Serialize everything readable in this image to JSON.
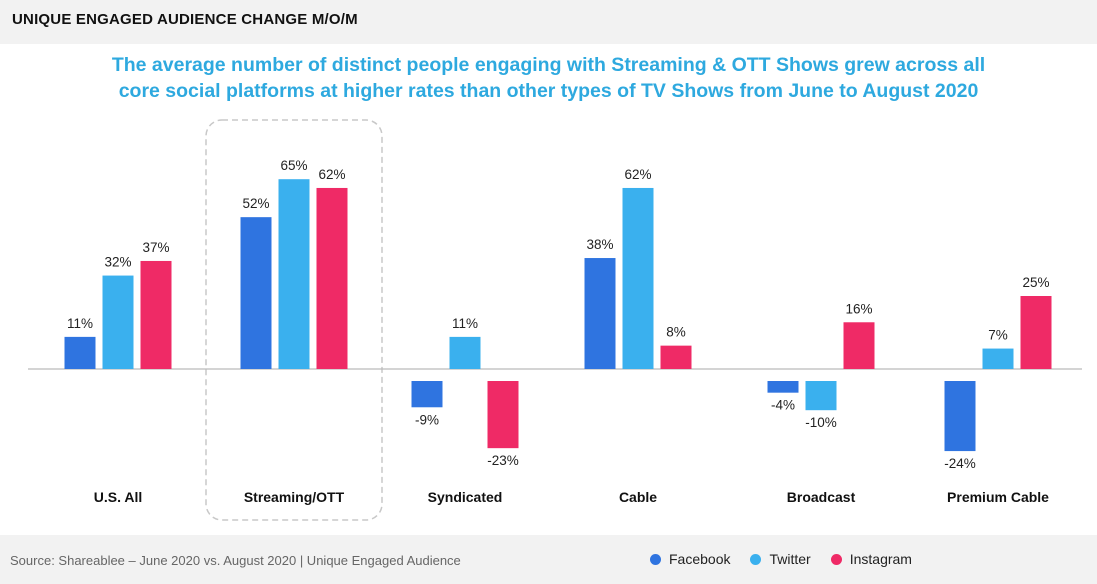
{
  "header": {
    "title": "UNIQUE ENGAGED AUDIENCE CHANGE M/O/M"
  },
  "subtitle": {
    "line1": "The average number of distinct people engaging with Streaming & OTT Shows grew across all",
    "line2": "core social platforms at higher rates than other types of TV Shows from June to August 2020"
  },
  "footer": {
    "source": "Source: Shareablee – June 2020 vs. August 2020 | Unique Engaged Audience"
  },
  "colors": {
    "facebook": "#2f74e0",
    "twitter": "#3ab0ee",
    "instagram": "#ef2a66",
    "highlight_border": "#c8c8c8",
    "baseline": "#bbbbbb"
  },
  "chart_data": {
    "type": "bar",
    "title": "The average number of distinct people engaging with Streaming & OTT Shows grew across all core social platforms at higher rates than other types of TV Shows from June to August 2020",
    "categories": [
      "U.S. All",
      "Streaming/OTT",
      "Syndicated",
      "Cable",
      "Broadcast",
      "Premium Cable"
    ],
    "series": [
      {
        "name": "Facebook",
        "color": "#2f74e0",
        "values": [
          11,
          52,
          -9,
          38,
          -4,
          -24
        ],
        "labels": [
          "11%",
          "52%",
          "-9%",
          "38%",
          "-4%",
          "-24%"
        ]
      },
      {
        "name": "Twitter",
        "color": "#3ab0ee",
        "values": [
          32,
          65,
          11,
          62,
          -10,
          7
        ],
        "labels": [
          "32%",
          "65%",
          "11%",
          "62%",
          "-10%",
          "7%"
        ]
      },
      {
        "name": "Instagram",
        "color": "#ef2a66",
        "values": [
          37,
          62,
          -23,
          8,
          16,
          25
        ],
        "labels": [
          "37%",
          "62%",
          "-23%",
          "8%",
          "16%",
          "25%"
        ]
      }
    ],
    "highlighted_category": "Streaming/OTT",
    "ylim": [
      -26,
      67
    ],
    "grid": false,
    "legend_position": "bottom-right",
    "xlabel": "",
    "ylabel": ""
  }
}
